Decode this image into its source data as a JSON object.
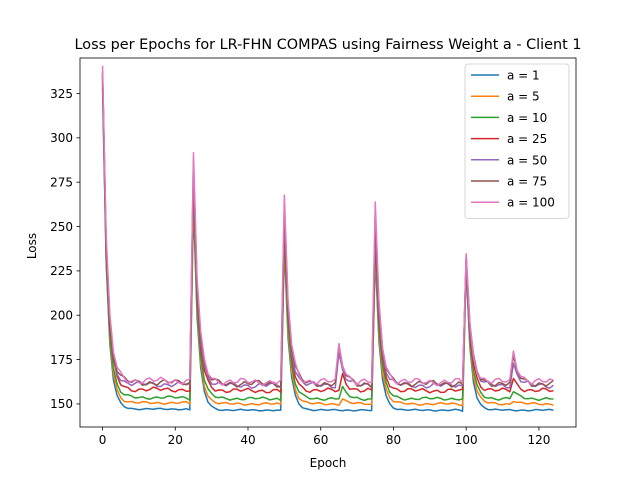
{
  "chart_data": {
    "type": "line",
    "title": "Loss per Epochs for LR-FHN COMPAS using Fairness Weight a - Client 1",
    "xlabel": "Epoch",
    "ylabel": "Loss",
    "xlim": [
      -6.2,
      130.2
    ],
    "ylim": [
      137,
      345
    ],
    "xticks": [
      0,
      20,
      40,
      60,
      80,
      100,
      120
    ],
    "yticks": [
      150,
      175,
      200,
      225,
      250,
      275,
      300,
      325
    ],
    "grid": false,
    "legend_position": "upper right",
    "epochs": 125,
    "cycle_starts": [
      0,
      25,
      50,
      75,
      100
    ],
    "series": [
      {
        "name": "a = 1",
        "color": "#1f77b4",
        "peaks": [
          328,
          262,
          238,
          233,
          226
        ],
        "floor": 146.5,
        "noise": 0.5,
        "bumps": []
      },
      {
        "name": "a = 5",
        "color": "#ff7f0e",
        "peaks": [
          330,
          267,
          242,
          238,
          229
        ],
        "floor": 150,
        "noise": 0.8,
        "bumps": [
          [
            66,
            3
          ],
          [
            113,
            2
          ]
        ]
      },
      {
        "name": "a = 10",
        "color": "#2ca02c",
        "peaks": [
          332,
          272,
          246,
          242,
          230
        ],
        "floor": 153,
        "noise": 1.0,
        "bumps": [
          [
            66,
            6
          ],
          [
            113,
            4
          ]
        ]
      },
      {
        "name": "a = 25",
        "color": "#d62728",
        "peaks": [
          334,
          278,
          252,
          247,
          232
        ],
        "floor": 157.5,
        "noise": 1.5,
        "bumps": [
          [
            66,
            9
          ],
          [
            113,
            7
          ]
        ]
      },
      {
        "name": "a = 50",
        "color": "#9467bd",
        "peaks": [
          336,
          284,
          258,
          252,
          233
        ],
        "floor": 160.5,
        "noise": 1.8,
        "bumps": [
          [
            65,
            18
          ],
          [
            113,
            12
          ]
        ]
      },
      {
        "name": "a = 75",
        "color": "#8c564b",
        "peaks": [
          338,
          288,
          262,
          257,
          234
        ],
        "floor": 161.5,
        "noise": 2.0,
        "bumps": [
          [
            65,
            20
          ],
          [
            113,
            14
          ]
        ]
      },
      {
        "name": "a = 100",
        "color": "#e377c2",
        "peaks": [
          341,
          292,
          266,
          262,
          235
        ],
        "floor": 162.5,
        "noise": 2.2,
        "bumps": [
          [
            65,
            21
          ],
          [
            113,
            17
          ]
        ]
      }
    ]
  }
}
